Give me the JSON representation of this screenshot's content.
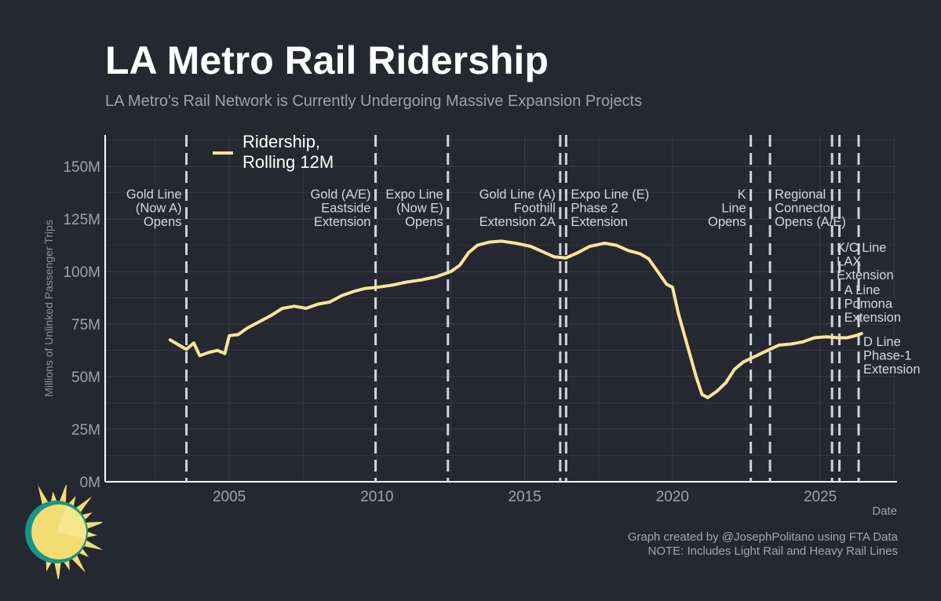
{
  "title": "LA Metro Rail Ridership",
  "subtitle": "LA Metro's Rail Network is Currently Undergoing Massive Expansion Projects",
  "caption": {
    "line1": "Graph created by @JosephPolitano using FTA Data",
    "line2": "NOTE: Includes Light Rail and Heavy Rail Lines"
  },
  "colors": {
    "background": "#252830",
    "line": "#fbe49a",
    "grid": "#3a3e47",
    "event_line": "#d0d3d9",
    "text": "#ffffff",
    "muted_text": "#9ea2a9",
    "logo_sun": "#f2dd74",
    "logo_ring": "#18958a"
  },
  "logo_icon": "sun-icon",
  "chart_data": {
    "type": "line",
    "xlabel": "Date",
    "ylabel": "Millions of Unlinked Passenger Trips",
    "xlim": [
      2000.8,
      2027.6
    ],
    "ylim": [
      0,
      165
    ],
    "x_ticks": [
      2005,
      2010,
      2015,
      2020,
      2025
    ],
    "y_ticks": [
      0,
      25,
      50,
      75,
      100,
      125,
      150
    ],
    "y_tick_labels": [
      "0M",
      "25M",
      "50M",
      "75M",
      "100M",
      "125M",
      "150M"
    ],
    "grid": true,
    "legend_position": "top-left",
    "series": [
      {
        "name": "Ridership, Rolling 12M",
        "points": [
          [
            2003.0,
            67.5
          ],
          [
            2003.3,
            65.0
          ],
          [
            2003.55,
            63.0
          ],
          [
            2003.8,
            66.0
          ],
          [
            2004.0,
            60.0
          ],
          [
            2004.3,
            61.5
          ],
          [
            2004.6,
            62.5
          ],
          [
            2004.85,
            61.0
          ],
          [
            2005.0,
            69.5
          ],
          [
            2005.3,
            70.0
          ],
          [
            2005.6,
            73.0
          ],
          [
            2006.0,
            76.0
          ],
          [
            2006.4,
            79.0
          ],
          [
            2006.8,
            82.5
          ],
          [
            2007.2,
            83.5
          ],
          [
            2007.6,
            82.5
          ],
          [
            2008.0,
            84.5
          ],
          [
            2008.4,
            85.5
          ],
          [
            2008.8,
            88.5
          ],
          [
            2009.2,
            90.5
          ],
          [
            2009.6,
            92.0
          ],
          [
            2010.0,
            92.5
          ],
          [
            2010.5,
            93.5
          ],
          [
            2011.0,
            95.0
          ],
          [
            2011.5,
            96.0
          ],
          [
            2012.0,
            97.5
          ],
          [
            2012.5,
            100.0
          ],
          [
            2012.8,
            103.0
          ],
          [
            2013.1,
            109.0
          ],
          [
            2013.4,
            112.5
          ],
          [
            2013.8,
            114.0
          ],
          [
            2014.2,
            114.5
          ],
          [
            2014.7,
            113.5
          ],
          [
            2015.2,
            112.0
          ],
          [
            2015.6,
            109.5
          ],
          [
            2016.0,
            107.0
          ],
          [
            2016.4,
            106.5
          ],
          [
            2016.8,
            109.0
          ],
          [
            2017.2,
            112.0
          ],
          [
            2017.7,
            113.5
          ],
          [
            2018.1,
            112.5
          ],
          [
            2018.5,
            110.0
          ],
          [
            2018.9,
            108.5
          ],
          [
            2019.2,
            106.0
          ],
          [
            2019.5,
            100.0
          ],
          [
            2019.8,
            94.0
          ],
          [
            2020.0,
            92.5
          ],
          [
            2020.2,
            80.0
          ],
          [
            2020.5,
            65.0
          ],
          [
            2020.8,
            50.0
          ],
          [
            2021.0,
            41.5
          ],
          [
            2021.2,
            40.0
          ],
          [
            2021.5,
            43.0
          ],
          [
            2021.8,
            47.0
          ],
          [
            2022.1,
            53.5
          ],
          [
            2022.4,
            57.0
          ],
          [
            2022.7,
            59.0
          ],
          [
            2023.0,
            61.0
          ],
          [
            2023.3,
            63.0
          ],
          [
            2023.6,
            65.0
          ],
          [
            2024.0,
            65.5
          ],
          [
            2024.4,
            66.5
          ],
          [
            2024.8,
            68.5
          ],
          [
            2025.2,
            69.0
          ],
          [
            2025.6,
            68.5
          ],
          [
            2025.9,
            68.5
          ],
          [
            2026.2,
            69.5
          ],
          [
            2026.4,
            70.5
          ]
        ]
      }
    ],
    "events": [
      {
        "x": 2003.55,
        "lines": [
          "Gold Line",
          "(Now A)",
          "Opens"
        ],
        "side": "left",
        "row": 0
      },
      {
        "x": 2009.95,
        "lines": [
          "Gold (A/E)",
          "Eastside",
          "Extension"
        ],
        "side": "left",
        "row": 0
      },
      {
        "x": 2012.4,
        "lines": [
          "Expo Line",
          "(Now E)",
          "Opens"
        ],
        "side": "left",
        "row": 0
      },
      {
        "x": 2016.2,
        "lines": [
          "Gold Line (A)",
          "Foothill",
          "Extension 2A"
        ],
        "side": "left",
        "row": 0
      },
      {
        "x": 2016.4,
        "lines": [
          "Expo Line (E)",
          "Phase 2",
          "Extension"
        ],
        "side": "right",
        "row": 0
      },
      {
        "x": 2022.65,
        "lines": [
          "K",
          "Line",
          "Opens"
        ],
        "side": "left",
        "row": 0
      },
      {
        "x": 2023.3,
        "lines": [
          "Regional",
          "Connector",
          "Opens (A/E)"
        ],
        "side": "right",
        "row": 0
      },
      {
        "x": 2025.4,
        "lines": [
          "K/C Line",
          "LAX",
          "Extension"
        ],
        "side": "right",
        "row": 1
      },
      {
        "x": 2025.65,
        "lines": [
          "A Line",
          "Pomona",
          "Extension"
        ],
        "side": "right",
        "row": 2
      },
      {
        "x": 2026.3,
        "lines": [
          "D Line",
          "Phase-1",
          "Extension"
        ],
        "side": "right",
        "row": 3
      }
    ]
  }
}
